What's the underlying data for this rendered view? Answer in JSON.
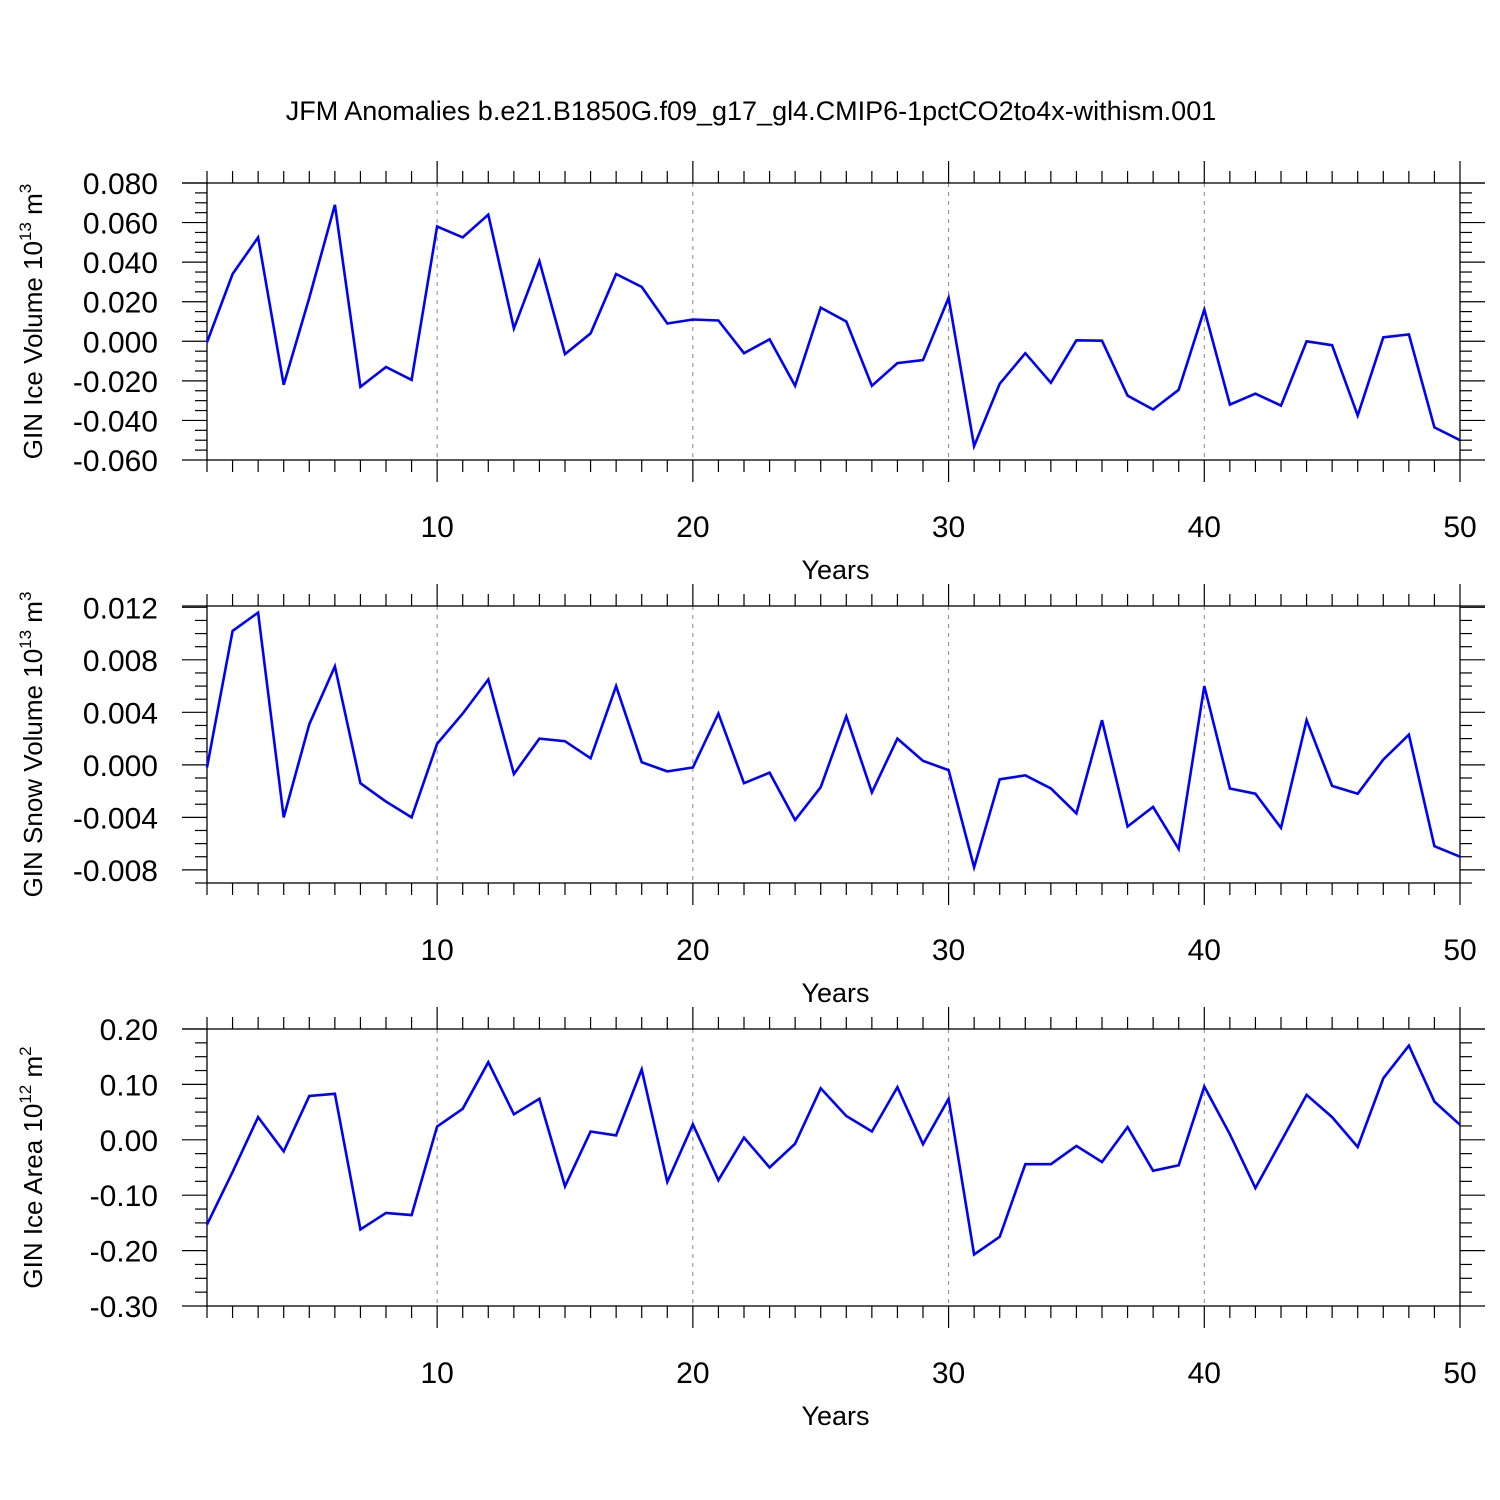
{
  "figure": {
    "title": "JFM Anomalies b.e21.B1850G.f09_g17_gl4.CMIP6-1pctCO2to4x-withism.001"
  },
  "colors": {
    "line": "#0000ff",
    "axis": "#000000",
    "grid": "#888888"
  },
  "chart_data": [
    {
      "type": "line",
      "id": "ice-volume",
      "ylabel_main": "GIN Ice Volume 10",
      "ylabel_exp": "13",
      "ylabel_unit": " m",
      "ylabel_unit_exp": "3",
      "xlabel": "Years",
      "xlim": [
        1,
        50
      ],
      "ylim": [
        -0.06,
        0.08
      ],
      "x_ticks": [
        "10",
        "20",
        "30",
        "40",
        "50"
      ],
      "y_ticks": [
        "0.080",
        "0.060",
        "0.040",
        "0.020",
        "0.000",
        "-0.020",
        "-0.040",
        "-0.060"
      ],
      "y_tick_values": [
        0.08,
        0.06,
        0.04,
        0.02,
        0.0,
        -0.02,
        -0.04,
        -0.06
      ],
      "grid": "vertical dashed at 10,20,30,40",
      "x": [
        1,
        2,
        3,
        4,
        5,
        6,
        7,
        8,
        9,
        10,
        11,
        12,
        13,
        14,
        15,
        16,
        17,
        18,
        19,
        20,
        21,
        22,
        23,
        24,
        25,
        26,
        27,
        28,
        29,
        30,
        31,
        32,
        33,
        34,
        35,
        36,
        37,
        38,
        39,
        40,
        41,
        42,
        43,
        44,
        45,
        46,
        47,
        48,
        49,
        50
      ],
      "values": [
        -0.0005,
        0.034,
        0.0525,
        -0.022,
        0.022,
        0.069,
        -0.023,
        -0.013,
        -0.0195,
        0.058,
        0.0525,
        0.064,
        0.0065,
        0.0405,
        -0.0065,
        0.004,
        0.034,
        0.0275,
        0.009,
        0.011,
        0.0105,
        -0.006,
        0.001,
        -0.0225,
        0.017,
        0.01,
        -0.0225,
        -0.011,
        -0.0095,
        0.022,
        -0.053,
        -0.0215,
        -0.006,
        -0.021,
        0.0005,
        0.0003,
        -0.0275,
        -0.0345,
        -0.0245,
        0.016,
        -0.032,
        -0.0265,
        -0.0325,
        0.0,
        -0.002,
        -0.0375,
        0.002,
        0.0035,
        -0.0435,
        -0.05
      ]
    },
    {
      "type": "line",
      "id": "snow-volume",
      "ylabel_main": "GIN Snow Volume 10",
      "ylabel_exp": "13",
      "ylabel_unit": " m",
      "ylabel_unit_exp": "3",
      "xlabel": "Years",
      "xlim": [
        1,
        50
      ],
      "ylim": [
        -0.009,
        0.0121
      ],
      "x_ticks": [
        "10",
        "20",
        "30",
        "40",
        "50"
      ],
      "y_ticks": [
        "0.012",
        "0.008",
        "0.004",
        "0.000",
        "-0.004",
        "-0.008"
      ],
      "y_tick_values": [
        0.012,
        0.008,
        0.004,
        0.0,
        -0.004,
        -0.008
      ],
      "grid": "vertical dashed at 10,20,30,40",
      "x": [
        1,
        2,
        3,
        4,
        5,
        6,
        7,
        8,
        9,
        10,
        11,
        12,
        13,
        14,
        15,
        16,
        17,
        18,
        19,
        20,
        21,
        22,
        23,
        24,
        25,
        26,
        27,
        28,
        29,
        30,
        31,
        32,
        33,
        34,
        35,
        36,
        37,
        38,
        39,
        40,
        41,
        42,
        43,
        44,
        45,
        46,
        47,
        48,
        49,
        50
      ],
      "values": [
        -0.0002,
        0.0102,
        0.0116,
        -0.004,
        0.0031,
        0.0075,
        -0.0014,
        -0.0028,
        -0.004,
        0.0016,
        0.0039,
        0.0065,
        -0.0007,
        0.002,
        0.0018,
        0.0005,
        0.006,
        0.0002,
        -0.0005,
        -0.0002,
        0.0039,
        -0.0014,
        -0.0006,
        -0.0042,
        -0.0017,
        0.0037,
        -0.0021,
        0.002,
        0.0003,
        -0.0004,
        -0.0078,
        -0.0011,
        -0.0008,
        -0.0018,
        -0.0037,
        0.0034,
        -0.0047,
        -0.0032,
        -0.0064,
        0.006,
        -0.0018,
        -0.0022,
        -0.0048,
        0.0034,
        -0.0016,
        -0.0022,
        0.0004,
        0.0023,
        -0.0062,
        -0.007
      ]
    },
    {
      "type": "line",
      "id": "ice-area",
      "ylabel_main": "GIN Ice Area 10",
      "ylabel_exp": "12",
      "ylabel_unit": " m",
      "ylabel_unit_exp": "2",
      "xlabel": "Years",
      "xlim": [
        1,
        50
      ],
      "ylim": [
        -0.3,
        0.2
      ],
      "x_ticks": [
        "10",
        "20",
        "30",
        "40",
        "50"
      ],
      "y_ticks": [
        "0.20",
        "0.10",
        "0.00",
        "-0.10",
        "-0.20",
        "-0.30"
      ],
      "y_tick_values": [
        0.2,
        0.1,
        0.0,
        -0.1,
        -0.2,
        -0.3
      ],
      "grid": "vertical dashed at 10,20,30,40",
      "x": [
        1,
        2,
        3,
        4,
        5,
        6,
        7,
        8,
        9,
        10,
        11,
        12,
        13,
        14,
        15,
        16,
        17,
        18,
        19,
        20,
        21,
        22,
        23,
        24,
        25,
        26,
        27,
        28,
        29,
        30,
        31,
        32,
        33,
        34,
        35,
        36,
        37,
        38,
        39,
        40,
        41,
        42,
        43,
        44,
        45,
        46,
        47,
        48,
        49,
        50
      ],
      "values": [
        -0.153,
        -0.058,
        0.041,
        -0.021,
        0.079,
        0.083,
        -0.162,
        -0.132,
        -0.136,
        0.024,
        0.056,
        0.14,
        0.046,
        0.074,
        -0.084,
        0.015,
        0.008,
        0.127,
        -0.076,
        0.028,
        -0.073,
        0.004,
        -0.05,
        -0.007,
        0.093,
        0.043,
        0.015,
        0.095,
        -0.008,
        0.074,
        -0.207,
        -0.175,
        -0.044,
        -0.044,
        -0.011,
        -0.04,
        0.023,
        -0.056,
        -0.046,
        0.096,
        0.01,
        -0.087,
        -0.003,
        0.081,
        0.041,
        -0.013,
        0.111,
        0.17,
        0.069,
        0.027
      ]
    }
  ]
}
